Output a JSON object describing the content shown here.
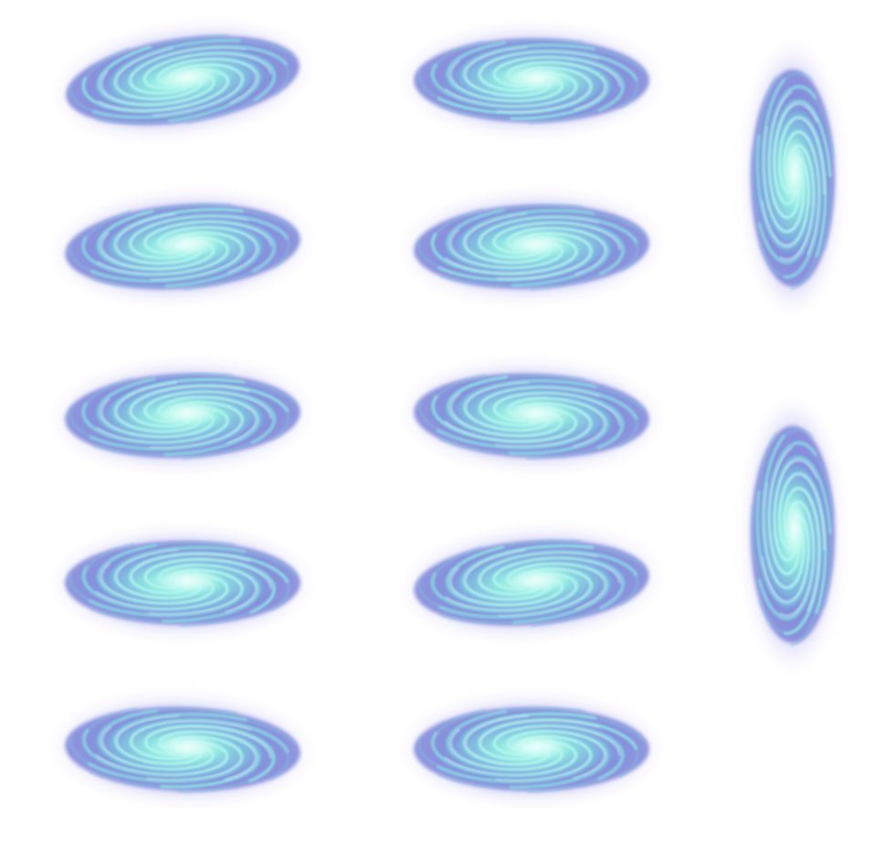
{
  "sprite_sheet": {
    "background": "#ffffff",
    "palette": {
      "glow": "#a9a7ee",
      "body": "#7d86d8",
      "mid": "#7fbfe0",
      "swirl": "#8ff0e6",
      "core": "#eafffb"
    },
    "columns": [
      {
        "orientation": "horizontal",
        "frames": [
          {
            "name": "vortex-frame-1",
            "rotation_deg": -8
          },
          {
            "name": "vortex-frame-2",
            "rotation_deg": -4
          },
          {
            "name": "vortex-frame-3",
            "rotation_deg": -2
          },
          {
            "name": "vortex-frame-4",
            "rotation_deg": 0
          },
          {
            "name": "vortex-frame-5",
            "rotation_deg": 2
          }
        ]
      },
      {
        "orientation": "horizontal",
        "frames": [
          {
            "name": "vortex-frame-6",
            "rotation_deg": 0
          },
          {
            "name": "vortex-frame-7",
            "rotation_deg": -2
          },
          {
            "name": "vortex-frame-8",
            "rotation_deg": 2
          },
          {
            "name": "vortex-frame-9",
            "rotation_deg": -4
          },
          {
            "name": "vortex-frame-10",
            "rotation_deg": 0
          }
        ]
      },
      {
        "orientation": "vertical",
        "frames": [
          {
            "name": "vortex-vertical-frame-1",
            "rotation_deg": 0
          },
          {
            "name": "vortex-vertical-frame-2",
            "rotation_deg": 0
          }
        ]
      }
    ]
  }
}
